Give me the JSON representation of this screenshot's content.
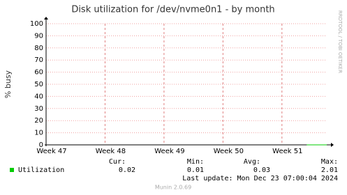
{
  "chart_data": {
    "type": "line",
    "title": "Disk utilization for /dev/nvme0n1 - by month",
    "y_label": "% busy",
    "side_label": "RRDTOOL / TOBI OETIKER",
    "x": [
      51.42,
      51.5,
      51.6,
      51.7,
      51.76
    ],
    "series": [
      {
        "name": "Utilization",
        "color": "#00cc00",
        "values": [
          0.01,
          0.03,
          0.03,
          0.02,
          0.02
        ]
      }
    ],
    "xlim": [
      47,
      51.76
    ],
    "xticks": [
      {
        "value": 47,
        "label": "Week 47"
      },
      {
        "value": 48,
        "label": "Week 48"
      },
      {
        "value": 49,
        "label": "Week 49"
      },
      {
        "value": 50,
        "label": "Week 50"
      },
      {
        "value": 51,
        "label": "Week 51"
      }
    ],
    "ylim": [
      0,
      100
    ],
    "yticks": [
      0,
      10,
      20,
      30,
      40,
      50,
      60,
      70,
      80,
      90,
      100
    ],
    "grid": true,
    "stats": {
      "headers": [
        "Cur:",
        "Min:",
        "Avg:",
        "Max:"
      ],
      "values": [
        0.02,
        0.01,
        0.03,
        2.01
      ]
    },
    "last_update": "Last update: Mon Dec 23 07:00:04 2024",
    "footer": "Munin 2.0.69"
  }
}
